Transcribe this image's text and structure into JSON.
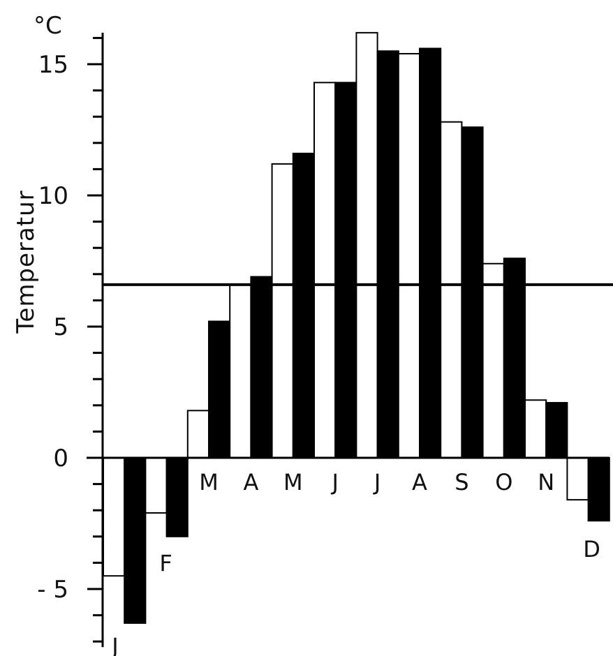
{
  "chart_data": {
    "type": "bar",
    "categories": [
      "J",
      "F",
      "M",
      "A",
      "M",
      "J",
      "J",
      "A",
      "S",
      "O",
      "N",
      "D"
    ],
    "series": [
      {
        "values": [
          -4.5,
          -2.1,
          1.8,
          6.6,
          11.2,
          14.3,
          16.2,
          15.4,
          12.8,
          7.4,
          2.2,
          -1.6
        ]
      },
      {
        "values": [
          -6.3,
          -3.0,
          5.2,
          6.9,
          11.6,
          14.3,
          15.5,
          15.6,
          12.6,
          7.6,
          2.1,
          -2.4
        ]
      }
    ],
    "reference_line": 6.6,
    "ylabel": "Temperatur",
    "unit": "°C",
    "ylim": [
      -7,
      16.2
    ],
    "yticks": [
      -5,
      0,
      5,
      10,
      15
    ],
    "ytick_labels": [
      "- 5",
      "0",
      "5",
      "10",
      "15"
    ],
    "colors": {
      "series_1_fill": "#ffffff",
      "series_2_fill": "#000000",
      "stroke": "#000000"
    },
    "grid": false
  }
}
